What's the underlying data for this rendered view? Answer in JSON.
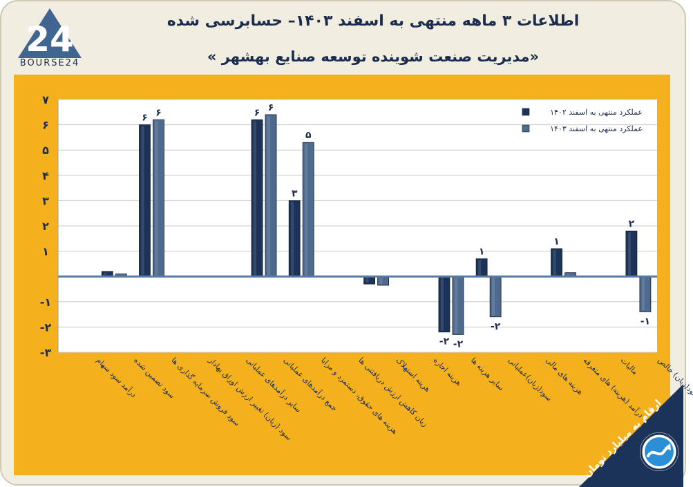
{
  "title": "اطلاعات ۳ ماهه منتهی به اسفند ۱۴۰۳– حسابرسی شده",
  "subtitle": "«مدیریت صنعت شوینده توسعه صنایع بهشهر »",
  "logo_text": "BOURSE24",
  "unit_note": "ارقام به میلیارد تومان",
  "colors": {
    "series_1402": "#1b3358",
    "series_1403": "#4f6a8f",
    "panel": "#f5b11d",
    "background": "#f1ede0",
    "title": "#1b2d4f"
  },
  "chart_data": {
    "type": "bar",
    "categories": [
      "درآمد سود سهام",
      "سود تضمین شده",
      "سود فروش سرمایه گذاری ها",
      "سود (زیان) تغییر ارزش اوراق بهادار",
      "سایر درآمدهای عملیاتی",
      "جمع درآمدهای عملیاتی",
      "هزینه های حقوق، دستمزد و مزایا",
      "زیان کاهش ارزش دریافتنی ها",
      "هزینه استهلاک",
      "هزینه اجاره",
      "سایر هزینه ها",
      "سود(زیان)عملیاتی",
      "هزینه های مالی",
      "درآمد (هزینه) های متفرقه",
      "مالیات",
      "سود(زیان) خالص"
    ],
    "series": [
      {
        "name": "عملکرد منتهی به اسفند ۱۴۰۲",
        "values": [
          0,
          0.2,
          6.0,
          0,
          0,
          6.2,
          3.0,
          0,
          -0.3,
          0,
          -2.2,
          0.7,
          0,
          1.1,
          0,
          1.8
        ]
      },
      {
        "name": "عملکرد منتهی به اسفند ۱۴۰۳",
        "values": [
          0,
          0.1,
          6.2,
          0,
          0,
          6.4,
          5.3,
          0,
          -0.35,
          0,
          -2.3,
          -1.6,
          0,
          0.15,
          0,
          -1.4
        ]
      }
    ],
    "data_labels": [
      [
        "",
        "",
        "۶",
        "",
        "",
        "۶",
        "۳",
        "",
        "",
        "",
        "-۲",
        "۱",
        "",
        "۱",
        "",
        "۲"
      ],
      [
        "",
        "",
        "۶",
        "",
        "",
        "۶",
        "۵",
        "",
        "",
        "",
        "-۲",
        "-۲",
        "",
        "",
        "",
        "-۱"
      ]
    ],
    "y_ticks": [
      "-۳",
      "-۲",
      "-۱",
      "",
      "۱",
      "۲",
      "۳",
      "۴",
      "۵",
      "۶",
      "۷"
    ],
    "ylim": [
      -3,
      7
    ],
    "grid": true,
    "legend_position": "top-right"
  }
}
